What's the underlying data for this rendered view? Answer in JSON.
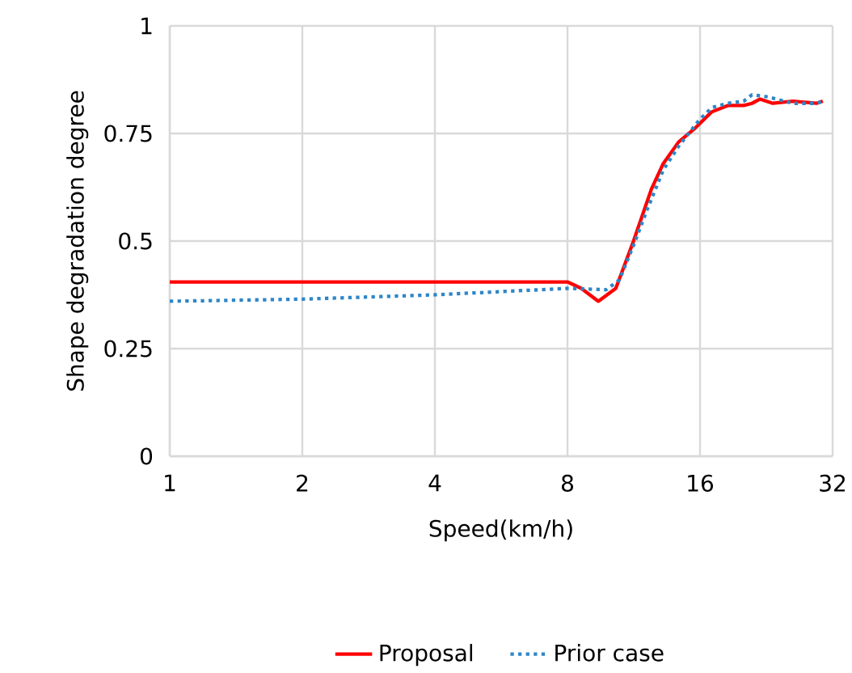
{
  "chart_data": {
    "type": "line",
    "xlabel": "Speed(km/h)",
    "ylabel": "Shape degradation degree",
    "log": "x",
    "grid": true,
    "legend": "bottom",
    "marker": "none",
    "xlim": [
      1,
      32
    ],
    "xticks": [
      1,
      2,
      4,
      8,
      16,
      32
    ],
    "ylim": [
      0,
      1
    ],
    "yticks": [
      0,
      0.25,
      0.5,
      0.75,
      1
    ],
    "series": [
      {
        "name": "Proposal",
        "color": "#ff0000",
        "line_style": "solid",
        "x": [
          1,
          2,
          4,
          7.5,
          8,
          8.6,
          9.4,
          10.3,
          11.3,
          12.4,
          13.2,
          14.3,
          15.5,
          17,
          18.5,
          20.1,
          21,
          21.9,
          23.4,
          26,
          29.4,
          30.4
        ],
        "values": [
          0.405,
          0.405,
          0.405,
          0.405,
          0.405,
          0.39,
          0.36,
          0.39,
          0.5,
          0.62,
          0.68,
          0.73,
          0.76,
          0.8,
          0.815,
          0.815,
          0.82,
          0.83,
          0.82,
          0.825,
          0.82,
          0.825
        ]
      },
      {
        "name": "Prior case",
        "color": "#2e86c8",
        "line_style": "dotted",
        "x": [
          1,
          2,
          4,
          8,
          9.8,
          10.5,
          11.3,
          12.1,
          13.2,
          14.3,
          15.9,
          17,
          18.5,
          20.1,
          21,
          22.8,
          26,
          29.4,
          30.4
        ],
        "values": [
          0.36,
          0.365,
          0.375,
          0.39,
          0.387,
          0.41,
          0.49,
          0.57,
          0.665,
          0.72,
          0.78,
          0.81,
          0.82,
          0.825,
          0.84,
          0.835,
          0.82,
          0.82,
          0.825
        ]
      }
    ]
  }
}
